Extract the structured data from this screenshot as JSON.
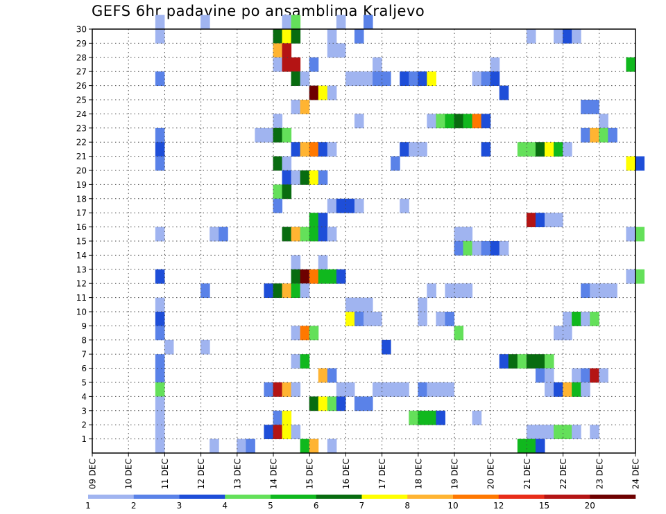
{
  "chart_data": {
    "type": "heatmap",
    "title": "GEFS 6hr padavine po ansamblima Kraljevo",
    "x_labels": [
      "09 DEC",
      "10 DEC",
      "11 DEC",
      "12 DEC",
      "13 DEC",
      "14 DEC",
      "15 DEC",
      "16 DEC",
      "17 DEC",
      "18 DEC",
      "19 DEC",
      "20 DEC",
      "21 DEC",
      "22 DEC",
      "23 DEC",
      "24 DEC"
    ],
    "y_labels": [
      "1",
      "2",
      "3",
      "4",
      "5",
      "6",
      "7",
      "8",
      "9",
      "10",
      "11",
      "12",
      "13",
      "14",
      "15",
      "16",
      "17",
      "18",
      "19",
      "20",
      "21",
      "22",
      "23",
      "24",
      "25",
      "26",
      "27",
      "28",
      "29",
      "30"
    ],
    "xlim_steps": [
      0,
      60
    ],
    "ylim": [
      0,
      30
    ],
    "grid": true,
    "legend": {
      "placement": "bottom",
      "labels": [
        "1",
        "2",
        "3",
        "4",
        "5",
        "6",
        "7",
        "8",
        "10",
        "12",
        "15",
        "20"
      ],
      "colors": [
        "#a0b4f0",
        "#5a82e8",
        "#1e4ed8",
        "#64e05a",
        "#10b81e",
        "#086c10",
        "#ffff00",
        "#ffb432",
        "#ff7800",
        "#e82d19",
        "#b41414",
        "#6e0000"
      ]
    },
    "cells": [
      {
        "m": 30,
        "s": [
          [
            7,
            1
          ],
          [
            12,
            1
          ],
          [
            21,
            1
          ],
          [
            22,
            4
          ],
          [
            27,
            1
          ],
          [
            30,
            2
          ]
        ]
      },
      {
        "m": 29,
        "s": [
          [
            7,
            1
          ],
          [
            20,
            6
          ],
          [
            21,
            7
          ],
          [
            22,
            6
          ],
          [
            26,
            1
          ],
          [
            29,
            2
          ],
          [
            48,
            1
          ],
          [
            51,
            1
          ],
          [
            52,
            3
          ],
          [
            53,
            1
          ]
        ]
      },
      {
        "m": 28,
        "s": [
          [
            20,
            8
          ],
          [
            21,
            11
          ],
          [
            26,
            1
          ],
          [
            27,
            1
          ]
        ]
      },
      {
        "m": 27,
        "s": [
          [
            20,
            1
          ],
          [
            21,
            11
          ],
          [
            22,
            11
          ],
          [
            24,
            2
          ],
          [
            31,
            1
          ],
          [
            44,
            1
          ],
          [
            59,
            5
          ]
        ]
      },
      {
        "m": 26,
        "s": [
          [
            7,
            2
          ],
          [
            22,
            6
          ],
          [
            23,
            1
          ],
          [
            28,
            1
          ],
          [
            29,
            1
          ],
          [
            30,
            1
          ],
          [
            31,
            2
          ],
          [
            32,
            2
          ],
          [
            34,
            3
          ],
          [
            35,
            2
          ],
          [
            36,
            3
          ],
          [
            37,
            7
          ],
          [
            42,
            1
          ],
          [
            43,
            2
          ],
          [
            44,
            3
          ]
        ]
      },
      {
        "m": 25,
        "s": [
          [
            24,
            12
          ],
          [
            25,
            7
          ],
          [
            26,
            1
          ],
          [
            45,
            3
          ]
        ]
      },
      {
        "m": 24,
        "s": [
          [
            22,
            1
          ],
          [
            23,
            8
          ],
          [
            54,
            2
          ],
          [
            55,
            2
          ]
        ]
      },
      {
        "m": 23,
        "s": [
          [
            20,
            1
          ],
          [
            29,
            1
          ],
          [
            37,
            1
          ],
          [
            38,
            4
          ],
          [
            39,
            5
          ],
          [
            40,
            6
          ],
          [
            41,
            5
          ],
          [
            42,
            9
          ],
          [
            43,
            3
          ],
          [
            56,
            1
          ]
        ]
      },
      {
        "m": 22,
        "s": [
          [
            7,
            2
          ],
          [
            18,
            1
          ],
          [
            19,
            1
          ],
          [
            20,
            6
          ],
          [
            21,
            4
          ],
          [
            54,
            2
          ],
          [
            55,
            8
          ],
          [
            56,
            4
          ],
          [
            57,
            2
          ]
        ]
      },
      {
        "m": 21,
        "s": [
          [
            7,
            3
          ],
          [
            22,
            3
          ],
          [
            23,
            8
          ],
          [
            24,
            9
          ],
          [
            25,
            3
          ],
          [
            26,
            1
          ],
          [
            34,
            3
          ],
          [
            35,
            1
          ],
          [
            36,
            1
          ],
          [
            43,
            3
          ],
          [
            47,
            4
          ],
          [
            48,
            4
          ],
          [
            49,
            6
          ],
          [
            50,
            7
          ],
          [
            51,
            5
          ],
          [
            52,
            1
          ]
        ]
      },
      {
        "m": 20,
        "s": [
          [
            7,
            2
          ],
          [
            20,
            6
          ],
          [
            21,
            1
          ],
          [
            33,
            2
          ],
          [
            59,
            7
          ],
          [
            60,
            3
          ]
        ]
      },
      {
        "m": 19,
        "s": [
          [
            21,
            3
          ],
          [
            22,
            1
          ],
          [
            23,
            6
          ],
          [
            24,
            7
          ],
          [
            25,
            2
          ]
        ]
      },
      {
        "m": 18,
        "s": [
          [
            20,
            4
          ],
          [
            21,
            6
          ]
        ]
      },
      {
        "m": 17,
        "s": [
          [
            20,
            2
          ],
          [
            26,
            1
          ],
          [
            27,
            3
          ],
          [
            28,
            3
          ],
          [
            29,
            1
          ],
          [
            34,
            1
          ]
        ]
      },
      {
        "m": 16,
        "s": [
          [
            24,
            5
          ],
          [
            25,
            3
          ],
          [
            48,
            11
          ],
          [
            49,
            3
          ],
          [
            50,
            1
          ],
          [
            51,
            1
          ]
        ]
      },
      {
        "m": 15,
        "s": [
          [
            7,
            1
          ],
          [
            13,
            1
          ],
          [
            14,
            2
          ],
          [
            21,
            6
          ],
          [
            22,
            8
          ],
          [
            23,
            4
          ],
          [
            24,
            5
          ],
          [
            25,
            3
          ],
          [
            26,
            1
          ],
          [
            40,
            1
          ],
          [
            41,
            1
          ],
          [
            59,
            1
          ],
          [
            60,
            4
          ]
        ]
      },
      {
        "m": 14,
        "s": [
          [
            40,
            2
          ],
          [
            41,
            4
          ],
          [
            42,
            1
          ],
          [
            43,
            2
          ],
          [
            44,
            3
          ],
          [
            45,
            1
          ]
        ]
      },
      {
        "m": 13,
        "s": [
          [
            22,
            1
          ],
          [
            25,
            1
          ]
        ]
      },
      {
        "m": 12,
        "s": [
          [
            7,
            3
          ],
          [
            22,
            6
          ],
          [
            23,
            12
          ],
          [
            24,
            9
          ],
          [
            25,
            5
          ],
          [
            26,
            5
          ],
          [
            27,
            3
          ],
          [
            59,
            1
          ],
          [
            60,
            4
          ]
        ]
      },
      {
        "m": 11,
        "s": [
          [
            12,
            2
          ],
          [
            19,
            3
          ],
          [
            20,
            6
          ],
          [
            21,
            8
          ],
          [
            22,
            5
          ],
          [
            23,
            1
          ],
          [
            37,
            1
          ],
          [
            39,
            1
          ],
          [
            40,
            1
          ],
          [
            41,
            1
          ],
          [
            54,
            2
          ],
          [
            55,
            1
          ],
          [
            56,
            1
          ],
          [
            57,
            1
          ]
        ]
      },
      {
        "m": 10,
        "s": [
          [
            7,
            1
          ],
          [
            28,
            1
          ],
          [
            29,
            1
          ],
          [
            30,
            1
          ],
          [
            36,
            1
          ]
        ]
      },
      {
        "m": 9,
        "s": [
          [
            7,
            3
          ],
          [
            28,
            7
          ],
          [
            29,
            2
          ],
          [
            30,
            1
          ],
          [
            31,
            1
          ],
          [
            36,
            1
          ],
          [
            38,
            1
          ],
          [
            39,
            2
          ],
          [
            52,
            1
          ],
          [
            53,
            5
          ],
          [
            54,
            1
          ],
          [
            55,
            4
          ]
        ]
      },
      {
        "m": 8,
        "s": [
          [
            7,
            2
          ],
          [
            22,
            1
          ],
          [
            23,
            9
          ],
          [
            24,
            4
          ],
          [
            40,
            4
          ],
          [
            51,
            1
          ],
          [
            52,
            1
          ]
        ]
      },
      {
        "m": 7,
        "s": [
          [
            8,
            1
          ],
          [
            12,
            1
          ],
          [
            32,
            3
          ]
        ]
      },
      {
        "m": 6,
        "s": [
          [
            7,
            2
          ],
          [
            22,
            1
          ],
          [
            23,
            5
          ],
          [
            45,
            3
          ],
          [
            46,
            6
          ],
          [
            47,
            4
          ],
          [
            48,
            6
          ],
          [
            49,
            6
          ],
          [
            50,
            4
          ]
        ]
      },
      {
        "m": 5,
        "s": [
          [
            7,
            2
          ],
          [
            25,
            8
          ],
          [
            26,
            2
          ],
          [
            49,
            2
          ],
          [
            50,
            1
          ],
          [
            53,
            1
          ],
          [
            54,
            2
          ],
          [
            55,
            11
          ],
          [
            56,
            1
          ]
        ]
      },
      {
        "m": 4,
        "s": [
          [
            7,
            4
          ],
          [
            19,
            2
          ],
          [
            20,
            11
          ],
          [
            21,
            8
          ],
          [
            22,
            1
          ],
          [
            27,
            1
          ],
          [
            28,
            1
          ],
          [
            31,
            1
          ],
          [
            32,
            1
          ],
          [
            33,
            1
          ],
          [
            34,
            1
          ],
          [
            36,
            2
          ],
          [
            37,
            1
          ],
          [
            38,
            1
          ],
          [
            39,
            1
          ],
          [
            50,
            1
          ],
          [
            51,
            3
          ],
          [
            52,
            8
          ],
          [
            53,
            5
          ],
          [
            54,
            1
          ]
        ]
      },
      {
        "m": 3,
        "s": [
          [
            7,
            1
          ],
          [
            24,
            6
          ],
          [
            25,
            7
          ],
          [
            26,
            4
          ],
          [
            27,
            3
          ],
          [
            29,
            2
          ],
          [
            30,
            2
          ]
        ]
      },
      {
        "m": 2,
        "s": [
          [
            7,
            1
          ],
          [
            20,
            2
          ],
          [
            21,
            7
          ],
          [
            35,
            4
          ],
          [
            36,
            5
          ],
          [
            37,
            5
          ],
          [
            38,
            3
          ],
          [
            42,
            1
          ]
        ]
      },
      {
        "m": 1,
        "s": [
          [
            7,
            1
          ],
          [
            19,
            3
          ],
          [
            20,
            11
          ],
          [
            21,
            7
          ],
          [
            22,
            1
          ],
          [
            48,
            1
          ],
          [
            49,
            1
          ],
          [
            50,
            1
          ],
          [
            51,
            4
          ],
          [
            52,
            4
          ],
          [
            53,
            1
          ],
          [
            55,
            1
          ]
        ]
      },
      {
        "m": 0,
        "s": [
          [
            7,
            1
          ],
          [
            13,
            1
          ],
          [
            16,
            1
          ],
          [
            17,
            2
          ],
          [
            23,
            5
          ],
          [
            24,
            8
          ],
          [
            26,
            1
          ],
          [
            47,
            5
          ],
          [
            48,
            5
          ],
          [
            49,
            3
          ]
        ]
      }
    ]
  }
}
